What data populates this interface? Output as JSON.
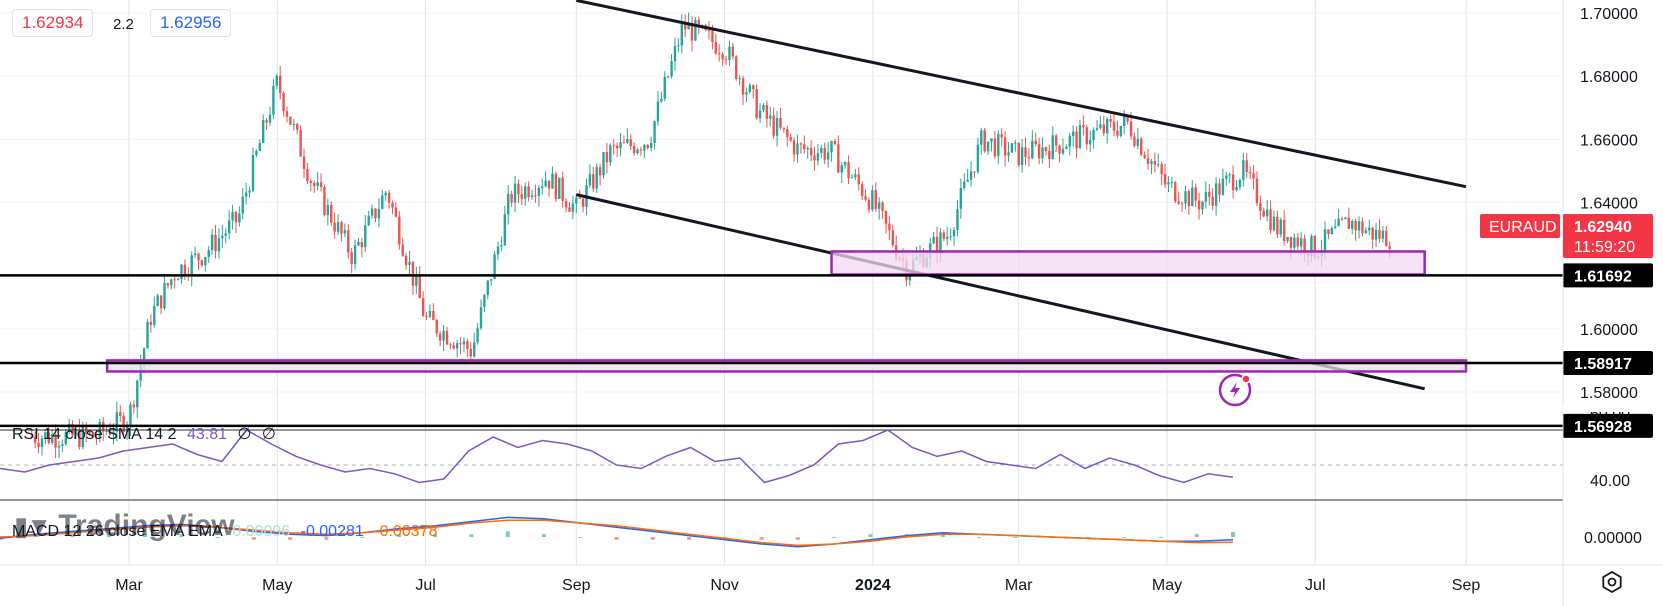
{
  "chart_data": {
    "type": "line",
    "symbol": "EURAUD",
    "last_price": "1.62940",
    "countdown": "11:59:20",
    "bid": "1.62934",
    "ask": "1.62956",
    "spread": "2.2",
    "x_axis_labels": [
      "Mar",
      "May",
      "Jul",
      "Sep",
      "Nov",
      "2024",
      "Mar",
      "May",
      "Jul",
      "Sep"
    ],
    "x": [
      "2023-03-01",
      "2023-05-01",
      "2023-07-01",
      "2023-09-01",
      "2023-11-01",
      "2024-01-01",
      "2024-03-01",
      "2024-05-01",
      "2024-07-01",
      "2024-09-01"
    ],
    "price_axis_ticks": [
      "1.70000",
      "1.68000",
      "1.66000",
      "1.64000",
      "1.60000",
      "1.58000"
    ],
    "ylim": [
      1.5692,
      1.704
    ],
    "series": [
      {
        "values": [
          [
            "2023-01-20",
            1.566
          ],
          [
            "2023-02-15",
            1.566
          ],
          [
            "2023-03-01",
            1.572
          ],
          [
            "2023-03-10",
            1.604
          ],
          [
            "2023-03-20",
            1.618
          ],
          [
            "2023-04-01",
            1.624
          ],
          [
            "2023-04-15",
            1.635
          ],
          [
            "2023-05-01",
            1.678
          ],
          [
            "2023-05-15",
            1.647
          ],
          [
            "2023-06-01",
            1.623
          ],
          [
            "2023-06-15",
            1.644
          ],
          [
            "2023-07-01",
            1.603
          ],
          [
            "2023-07-20",
            1.593
          ],
          [
            "2023-08-05",
            1.642
          ],
          [
            "2023-08-20",
            1.648
          ],
          [
            "2023-09-01",
            1.638
          ],
          [
            "2023-09-15",
            1.656
          ],
          [
            "2023-10-01",
            1.66
          ],
          [
            "2023-10-15",
            1.696
          ],
          [
            "2023-11-01",
            1.689
          ],
          [
            "2023-11-15",
            1.669
          ],
          [
            "2023-12-01",
            1.657
          ],
          [
            "2023-12-15",
            1.656
          ],
          [
            "2024-01-01",
            1.64
          ],
          [
            "2024-01-15",
            1.619
          ],
          [
            "2024-02-01",
            1.63
          ],
          [
            "2024-02-15",
            1.66
          ],
          [
            "2024-03-01",
            1.655
          ],
          [
            "2024-03-15",
            1.658
          ],
          [
            "2024-04-01",
            1.662
          ],
          [
            "2024-04-15",
            1.665
          ],
          [
            "2024-05-01",
            1.645
          ],
          [
            "2024-05-15",
            1.64
          ],
          [
            "2024-06-01",
            1.65
          ],
          [
            "2024-06-15",
            1.632
          ],
          [
            "2024-07-01",
            1.625
          ],
          [
            "2024-07-15",
            1.634
          ],
          [
            "2024-07-25",
            1.63
          ],
          [
            "2024-08-01",
            1.629
          ]
        ]
      }
    ],
    "horizontal_levels": [
      {
        "value": 1.61692,
        "label": "1.61692"
      },
      {
        "value": 1.58917,
        "label": "1.58917"
      },
      {
        "value": 1.56928,
        "label": "1.56928"
      }
    ],
    "zones": [
      {
        "x_start": "2023-12-15",
        "x_end": "2024-08-15",
        "y_low": 1.6172,
        "y_high": 1.6245
      },
      {
        "x_start": "2023-02-20",
        "x_end": "2024-09-01",
        "y_low": 1.5865,
        "y_high": 1.59
      }
    ],
    "trendlines": [
      {
        "x1": "2023-09-01",
        "y1": 1.704,
        "x2": "2024-09-01",
        "y2": 1.645
      },
      {
        "x1": "2023-09-01",
        "y1": 1.6425,
        "x2": "2024-08-15",
        "y2": 1.581
      }
    ],
    "rsi": {
      "label": "RSI 14 close SMA 14 2",
      "value": "43.81",
      "extra1": "∅",
      "extra2": "∅",
      "ticks": [
        "40.00"
      ],
      "partial_tick": "60.00",
      "values": [
        48,
        46,
        50,
        52,
        54,
        58,
        60,
        62,
        56,
        52,
        70,
        62,
        55,
        50,
        46,
        48,
        45,
        40,
        42,
        58,
        66,
        60,
        64,
        62,
        58,
        50,
        48,
        55,
        60,
        52,
        54,
        40,
        44,
        50,
        62,
        64,
        70,
        60,
        55,
        58,
        52,
        50,
        48,
        56,
        48,
        54,
        50,
        44,
        40,
        45,
        43
      ]
    },
    "macd": {
      "label": "MACD 12 26 close EMA EMA",
      "hist": "0.00096",
      "macd": "-0.00281",
      "signal": "-0.00378",
      "ticks": [
        "0.00000"
      ],
      "macd_values": [
        -0.001,
        0.002,
        0.004,
        0.006,
        0.008,
        0.009,
        0.007,
        0.004,
        0.002,
        0.001,
        0.003,
        0.006,
        0.008,
        0.011,
        0.014,
        0.013,
        0.01,
        0.007,
        0.004,
        0.001,
        -0.002,
        -0.005,
        -0.007,
        -0.005,
        -0.002,
        0.001,
        0.003,
        0.002,
        0.001,
        0.0,
        -0.001,
        -0.002,
        -0.003,
        -0.003,
        -0.002
      ],
      "signal_values": [
        0.0,
        0.001,
        0.003,
        0.005,
        0.007,
        0.008,
        0.007,
        0.005,
        0.003,
        0.002,
        0.003,
        0.005,
        0.007,
        0.01,
        0.012,
        0.012,
        0.01,
        0.008,
        0.005,
        0.002,
        -0.001,
        -0.004,
        -0.006,
        -0.005,
        -0.003,
        0.0,
        0.002,
        0.002,
        0.001,
        0.0,
        -0.001,
        -0.002,
        -0.003,
        -0.004,
        -0.0038
      ]
    }
  },
  "branding": {
    "logo_text": "TradingView"
  },
  "colors": {
    "up": "#26a69a",
    "down": "#ef5350",
    "accent_red": "#f23645",
    "accent_blue": "#2962ff",
    "zone_fill": "#f3d9f2",
    "zone_border": "#9c27b0",
    "rsi_line": "#7e57c2",
    "macd_line": "#2962ff",
    "signal_line": "#ff6d00",
    "grid": "#e0e3eb"
  },
  "icons": {
    "settings": "gear-icon",
    "alert": "lightning-icon"
  }
}
